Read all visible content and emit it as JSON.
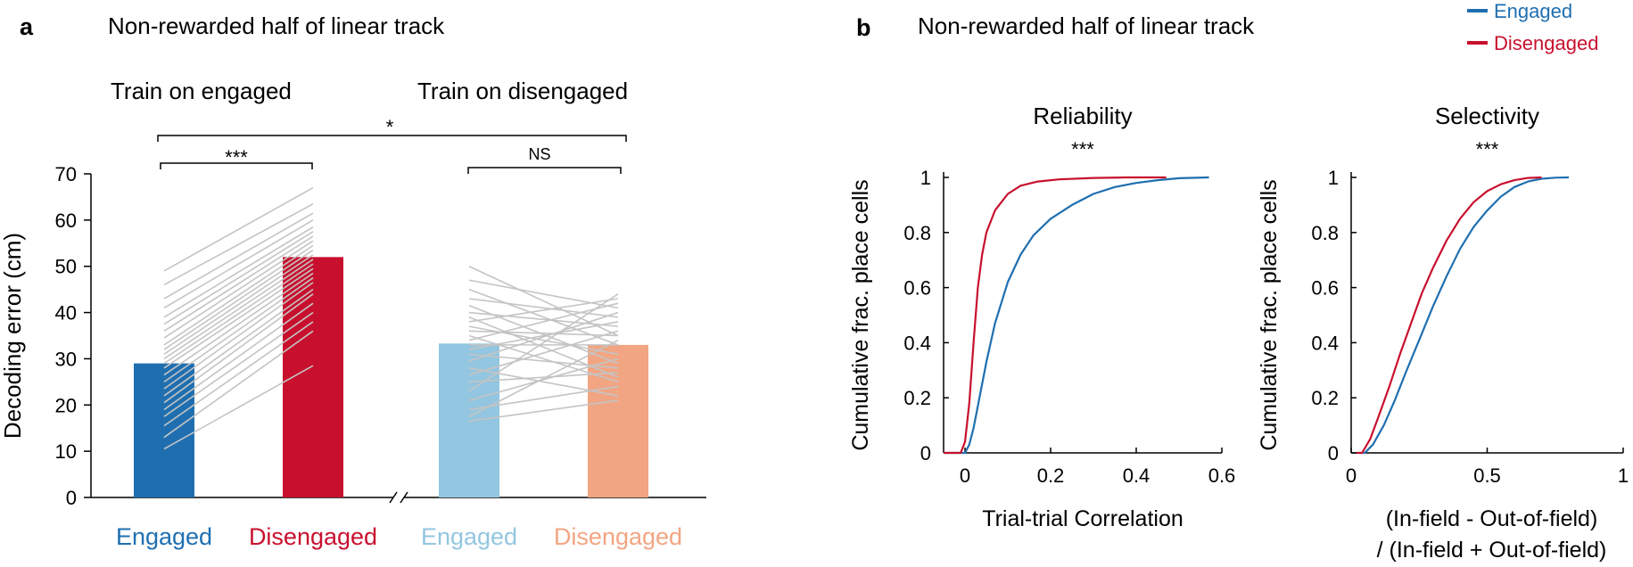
{
  "colors": {
    "engaged": "#1f6fb0",
    "disengaged": "#c8102e",
    "engaged_light": "#93c6e0",
    "disengaged_light": "#f2a582",
    "pair_lines": "#c4c4c4",
    "axis": "#000000"
  },
  "panel_a": {
    "letter": "a",
    "title": "Non-rewarded half of linear track",
    "group_left": "Train on engaged",
    "group_right": "Train on disengaged",
    "sig_overall": "*",
    "sig_left": "***",
    "sig_right": "NS"
  },
  "panel_b": {
    "letter": "b",
    "title": "Non-rewarded half of linear track",
    "legend": {
      "engaged": "Engaged",
      "disengaged": "Disengaged"
    }
  },
  "chart_data": [
    {
      "type": "bar",
      "title": "Non-rewarded half of linear track",
      "ylabel": "Decoding error (cm)",
      "ylim": [
        0,
        70
      ],
      "yticks": [
        "0",
        "10",
        "20",
        "30",
        "40",
        "50",
        "60",
        "70"
      ],
      "categories": [
        "Engaged",
        "Disengaged",
        "Engaged",
        "Disengaged"
      ],
      "groups": [
        "Train on engaged",
        "Train on engaged",
        "Train on disengaged",
        "Train on disengaged"
      ],
      "values": [
        29,
        52,
        33.3,
        33
      ],
      "colors": [
        "#1f6fb0",
        "#c8102e",
        "#93c6e0",
        "#f2a582"
      ],
      "paired_lines_left": [
        [
          10.5,
          28.5
        ],
        [
          13,
          36
        ],
        [
          15.5,
          38
        ],
        [
          17.5,
          40
        ],
        [
          19,
          42
        ],
        [
          20.5,
          44
        ],
        [
          22,
          45
        ],
        [
          23.5,
          46.5
        ],
        [
          25,
          47.5
        ],
        [
          26.5,
          48.5
        ],
        [
          28,
          49.5
        ],
        [
          29,
          50.5
        ],
        [
          30,
          51.5
        ],
        [
          31,
          52.5
        ],
        [
          32,
          53.5
        ],
        [
          33,
          54.5
        ],
        [
          34.5,
          55.5
        ],
        [
          36,
          56.5
        ],
        [
          37.5,
          57.5
        ],
        [
          39,
          58.5
        ],
        [
          41,
          60
        ],
        [
          43,
          61.5
        ],
        [
          46,
          63.5
        ],
        [
          49,
          67
        ]
      ],
      "paired_lines_right": [
        [
          16.5,
          21
        ],
        [
          17.5,
          34
        ],
        [
          19,
          24
        ],
        [
          21,
          30
        ],
        [
          23,
          44
        ],
        [
          25,
          27
        ],
        [
          26.5,
          36
        ],
        [
          28,
          22
        ],
        [
          29.5,
          40
        ],
        [
          31,
          28
        ],
        [
          32,
          38
        ],
        [
          33,
          33
        ],
        [
          34,
          42
        ],
        [
          35,
          25
        ],
        [
          36,
          35
        ],
        [
          37,
          31
        ],
        [
          38,
          43
        ],
        [
          39,
          26
        ],
        [
          40,
          37
        ],
        [
          41.5,
          29
        ],
        [
          43,
          39
        ],
        [
          45,
          33
        ],
        [
          47,
          41
        ],
        [
          50,
          35
        ]
      ],
      "significance": [
        {
          "between": "Engaged vs Disengaged (train on engaged)",
          "label": "***"
        },
        {
          "between": "Engaged vs Disengaged (train on disengaged)",
          "label": "NS"
        },
        {
          "between": "Train on engaged vs Train on disengaged",
          "label": "*"
        }
      ]
    },
    {
      "type": "line",
      "title": "Reliability",
      "significance": "***",
      "xlabel": "Trial-trial Correlation",
      "ylabel": "Cumulative frac. place cells",
      "xlim": [
        -0.05,
        0.6
      ],
      "ylim": [
        0,
        1
      ],
      "xticks": [
        "0",
        "0.2",
        "0.4",
        "0.6"
      ],
      "yticks": [
        "0",
        "0.2",
        "0.4",
        "0.6",
        "0.8",
        "1"
      ],
      "series": [
        {
          "name": "Engaged",
          "color": "#1f6fb0",
          "x": [
            -0.05,
            0,
            0.01,
            0.02,
            0.03,
            0.05,
            0.07,
            0.1,
            0.13,
            0.16,
            0.2,
            0.25,
            0.3,
            0.35,
            0.4,
            0.45,
            0.5,
            0.57
          ],
          "y": [
            0,
            0,
            0.03,
            0.09,
            0.17,
            0.33,
            0.47,
            0.62,
            0.72,
            0.79,
            0.85,
            0.9,
            0.94,
            0.965,
            0.98,
            0.99,
            0.997,
            1
          ]
        },
        {
          "name": "Disengaged",
          "color": "#c8102e",
          "x": [
            -0.05,
            -0.01,
            0,
            0.01,
            0.02,
            0.03,
            0.04,
            0.05,
            0.07,
            0.1,
            0.13,
            0.17,
            0.22,
            0.3,
            0.38,
            0.47
          ],
          "y": [
            0,
            0,
            0.04,
            0.18,
            0.4,
            0.6,
            0.72,
            0.8,
            0.88,
            0.94,
            0.97,
            0.985,
            0.993,
            0.998,
            1,
            1
          ]
        }
      ]
    },
    {
      "type": "line",
      "title": "Selectivity",
      "significance": "***",
      "xlabel": "(In-field - Out-of-field) / (In-field + Out-of-field)",
      "xlabel_lines": [
        "(In-field - Out-of-field)",
        "/ (In-field + Out-of-field)"
      ],
      "ylabel": "Cumulative frac. place cells",
      "xlim": [
        0,
        1
      ],
      "ylim": [
        0,
        1
      ],
      "xticks": [
        "0",
        "0.5",
        "1"
      ],
      "yticks": [
        "0",
        "0.2",
        "0.4",
        "0.6",
        "0.8",
        "1"
      ],
      "series": [
        {
          "name": "Engaged",
          "color": "#1f6fb0",
          "x": [
            0.03,
            0.05,
            0.08,
            0.12,
            0.16,
            0.2,
            0.25,
            0.3,
            0.35,
            0.4,
            0.45,
            0.5,
            0.55,
            0.6,
            0.65,
            0.7,
            0.75,
            0.8
          ],
          "y": [
            0,
            0,
            0.03,
            0.1,
            0.19,
            0.29,
            0.41,
            0.53,
            0.64,
            0.74,
            0.82,
            0.88,
            0.93,
            0.965,
            0.985,
            0.995,
            0.999,
            1
          ]
        },
        {
          "name": "Disengaged",
          "color": "#c8102e",
          "x": [
            0.02,
            0.04,
            0.07,
            0.1,
            0.14,
            0.18,
            0.22,
            0.26,
            0.3,
            0.35,
            0.4,
            0.45,
            0.5,
            0.55,
            0.6,
            0.65,
            0.7
          ],
          "y": [
            0,
            0,
            0.05,
            0.13,
            0.24,
            0.36,
            0.47,
            0.58,
            0.67,
            0.77,
            0.85,
            0.91,
            0.95,
            0.975,
            0.99,
            0.998,
            1
          ]
        }
      ]
    }
  ]
}
